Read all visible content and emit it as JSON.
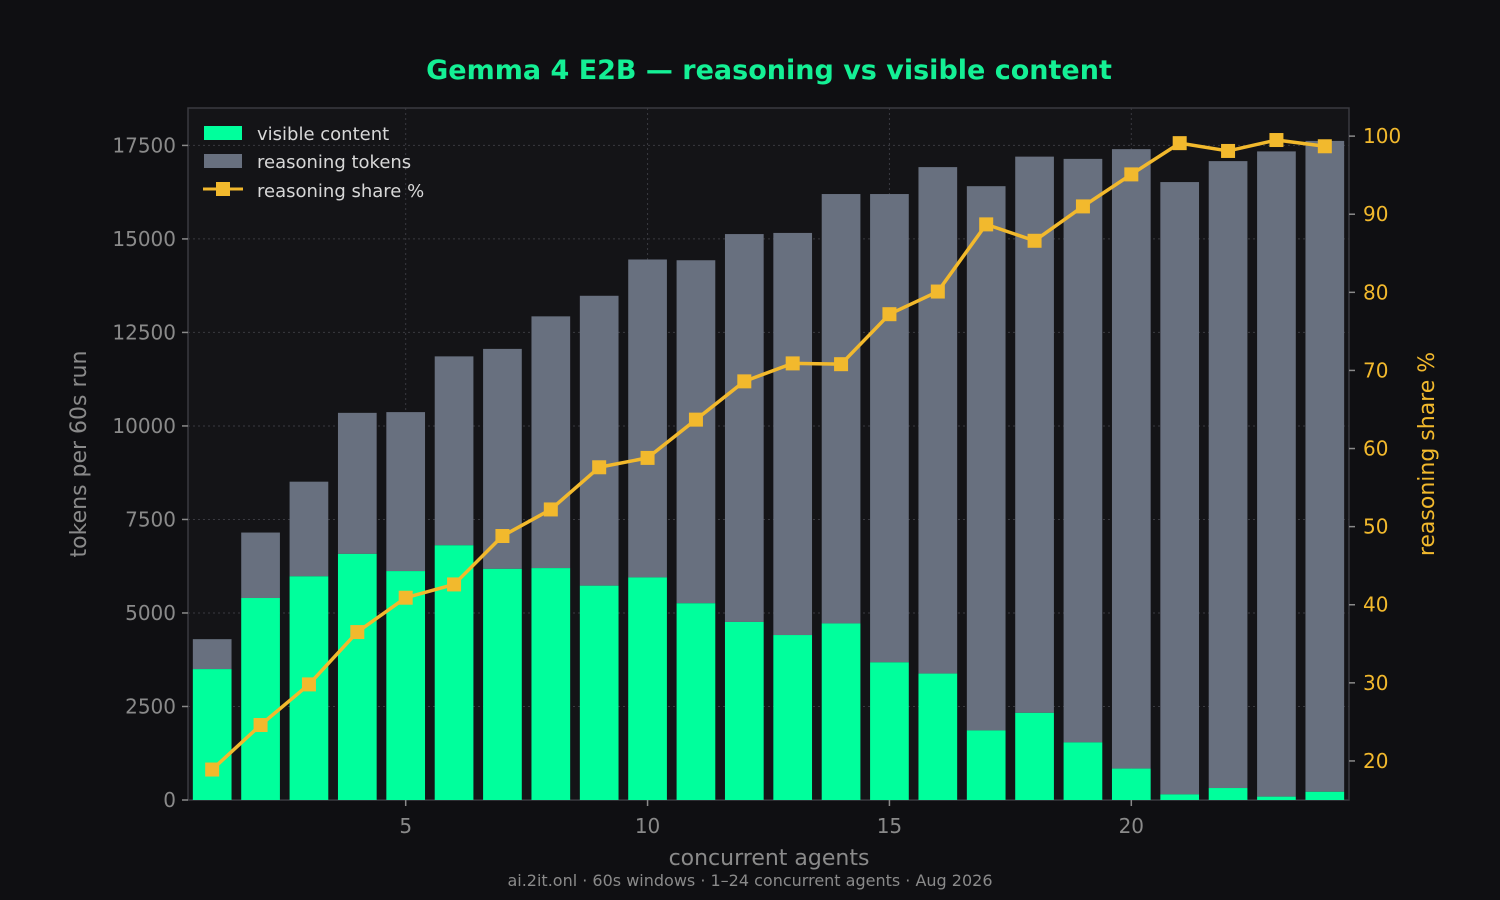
{
  "chart_data": {
    "type": "bar",
    "title": "Gemma 4 E2B — reasoning vs visible content",
    "xlabel": "concurrent agents",
    "ylabel": "tokens per 60s run",
    "y2label": "reasoning share %",
    "footer": "ai.2it.onl · 60s windows · 1–24 concurrent agents · Aug 2026",
    "x": [
      1,
      2,
      3,
      4,
      5,
      6,
      7,
      8,
      9,
      10,
      11,
      12,
      13,
      14,
      15,
      16,
      17,
      18,
      19,
      20,
      21,
      22,
      23,
      24
    ],
    "xlim": [
      0.5,
      24.5
    ],
    "ylim": [
      0,
      18500
    ],
    "y2lim": [
      15,
      103.6
    ],
    "xticks": [
      5,
      10,
      15,
      20
    ],
    "yticks": [
      0,
      2500,
      5000,
      7500,
      10000,
      12500,
      15000,
      17500
    ],
    "y2ticks": [
      20,
      30,
      40,
      50,
      60,
      70,
      80,
      90,
      100
    ],
    "legend_position": "top-left",
    "grid": true,
    "series": [
      {
        "name": "visible content",
        "kind": "bar",
        "color": "#00ff9c",
        "values": [
          3500,
          5400,
          5980,
          6580,
          6120,
          6810,
          6180,
          6200,
          5730,
          5950,
          5260,
          4760,
          4410,
          4720,
          3680,
          3380,
          1860,
          2330,
          1540,
          840,
          150,
          320,
          90,
          220
        ]
      },
      {
        "name": "reasoning tokens",
        "kind": "bar-stacked",
        "color": "#68707f",
        "totals": [
          4300,
          7150,
          8510,
          10350,
          10370,
          11860,
          12060,
          12930,
          13480,
          14450,
          14430,
          15130,
          15160,
          16200,
          16200,
          16920,
          16410,
          17200,
          17140,
          17400,
          16520,
          17080,
          17340,
          17620
        ]
      },
      {
        "name": "reasoning share %",
        "kind": "line",
        "axis": "right",
        "color": "#f2b92d",
        "values": [
          18.9,
          24.6,
          29.8,
          36.5,
          40.9,
          42.6,
          48.8,
          52.2,
          57.6,
          58.8,
          63.7,
          68.6,
          70.9,
          70.8,
          77.2,
          80.1,
          88.7,
          86.6,
          91.0,
          95.1,
          99.1,
          98.1,
          99.5,
          98.7
        ]
      }
    ]
  }
}
